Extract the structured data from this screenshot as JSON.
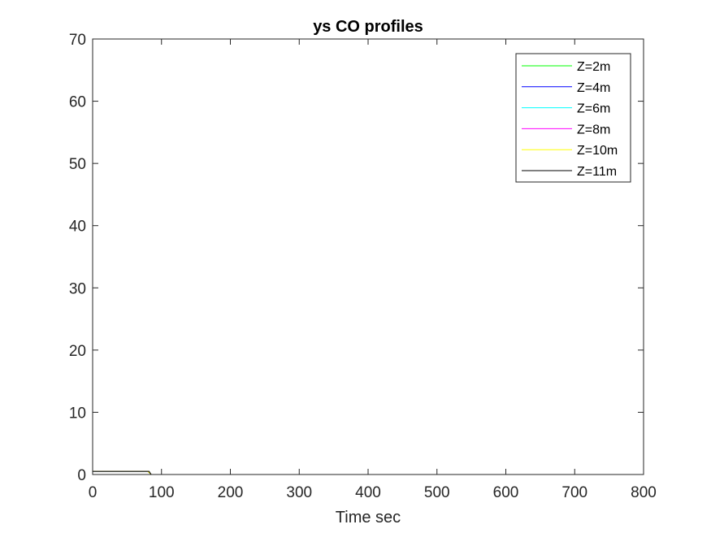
{
  "chart_data": {
    "type": "line",
    "title": "ys CO profiles",
    "xlabel": "Time sec",
    "ylabel": "",
    "xlim": [
      0,
      800
    ],
    "ylim": [
      0,
      70
    ],
    "xticks": [
      0,
      100,
      200,
      300,
      400,
      500,
      600,
      700,
      800
    ],
    "yticks": [
      0,
      10,
      20,
      30,
      40,
      50,
      60,
      70
    ],
    "grid": false,
    "legend_position": "top-right",
    "series": [
      {
        "name": "Z=2m",
        "color": "#00ff00",
        "x": [
          0,
          20,
          80,
          85,
          800
        ],
        "y": [
          0.5,
          0.5,
          0.5,
          0,
          0
        ]
      },
      {
        "name": "Z=4m",
        "color": "#0000ff",
        "x": [
          0,
          30,
          80,
          85,
          800
        ],
        "y": [
          0.5,
          0.5,
          0.5,
          0,
          0
        ]
      },
      {
        "name": "Z=6m",
        "color": "#00ffff",
        "x": [
          0,
          50,
          80,
          85,
          800
        ],
        "y": [
          0.5,
          0.5,
          0.5,
          0,
          0
        ]
      },
      {
        "name": "Z=8m",
        "color": "#ff00ff",
        "x": [
          0,
          65,
          80,
          85,
          800
        ],
        "y": [
          0.5,
          0.5,
          0.5,
          0,
          0
        ]
      },
      {
        "name": "Z=10m",
        "color": "#ffff00",
        "x": [
          0,
          80,
          85,
          800
        ],
        "y": [
          0.5,
          0.5,
          0,
          0
        ]
      },
      {
        "name": "Z=11m",
        "color": "#000000",
        "x": [
          0,
          82,
          85,
          800
        ],
        "y": [
          0.5,
          0.5,
          0,
          0
        ]
      }
    ]
  }
}
